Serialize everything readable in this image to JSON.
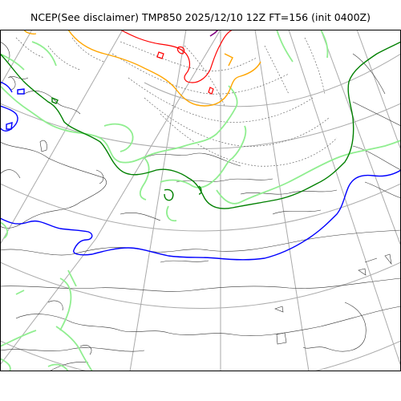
{
  "title": "NCEP(See disclaimer) TMP850 2025/12/10 12Z FT=156 (init 0400Z)",
  "colors": {
    "coastline": "#000000",
    "graticule": "#aaaaaa",
    "contour_minor": "#555555",
    "isotherm_0": "#0000ff",
    "isotherm_warm": "#008000",
    "isotherm_cold": "#90ee90",
    "isotherm_orange": "#ffa500",
    "isotherm_red": "#ff0000",
    "isotherm_purple": "#800080"
  },
  "icons": {
    "map": "weather-map",
    "projection": "polar-stereographic"
  }
}
